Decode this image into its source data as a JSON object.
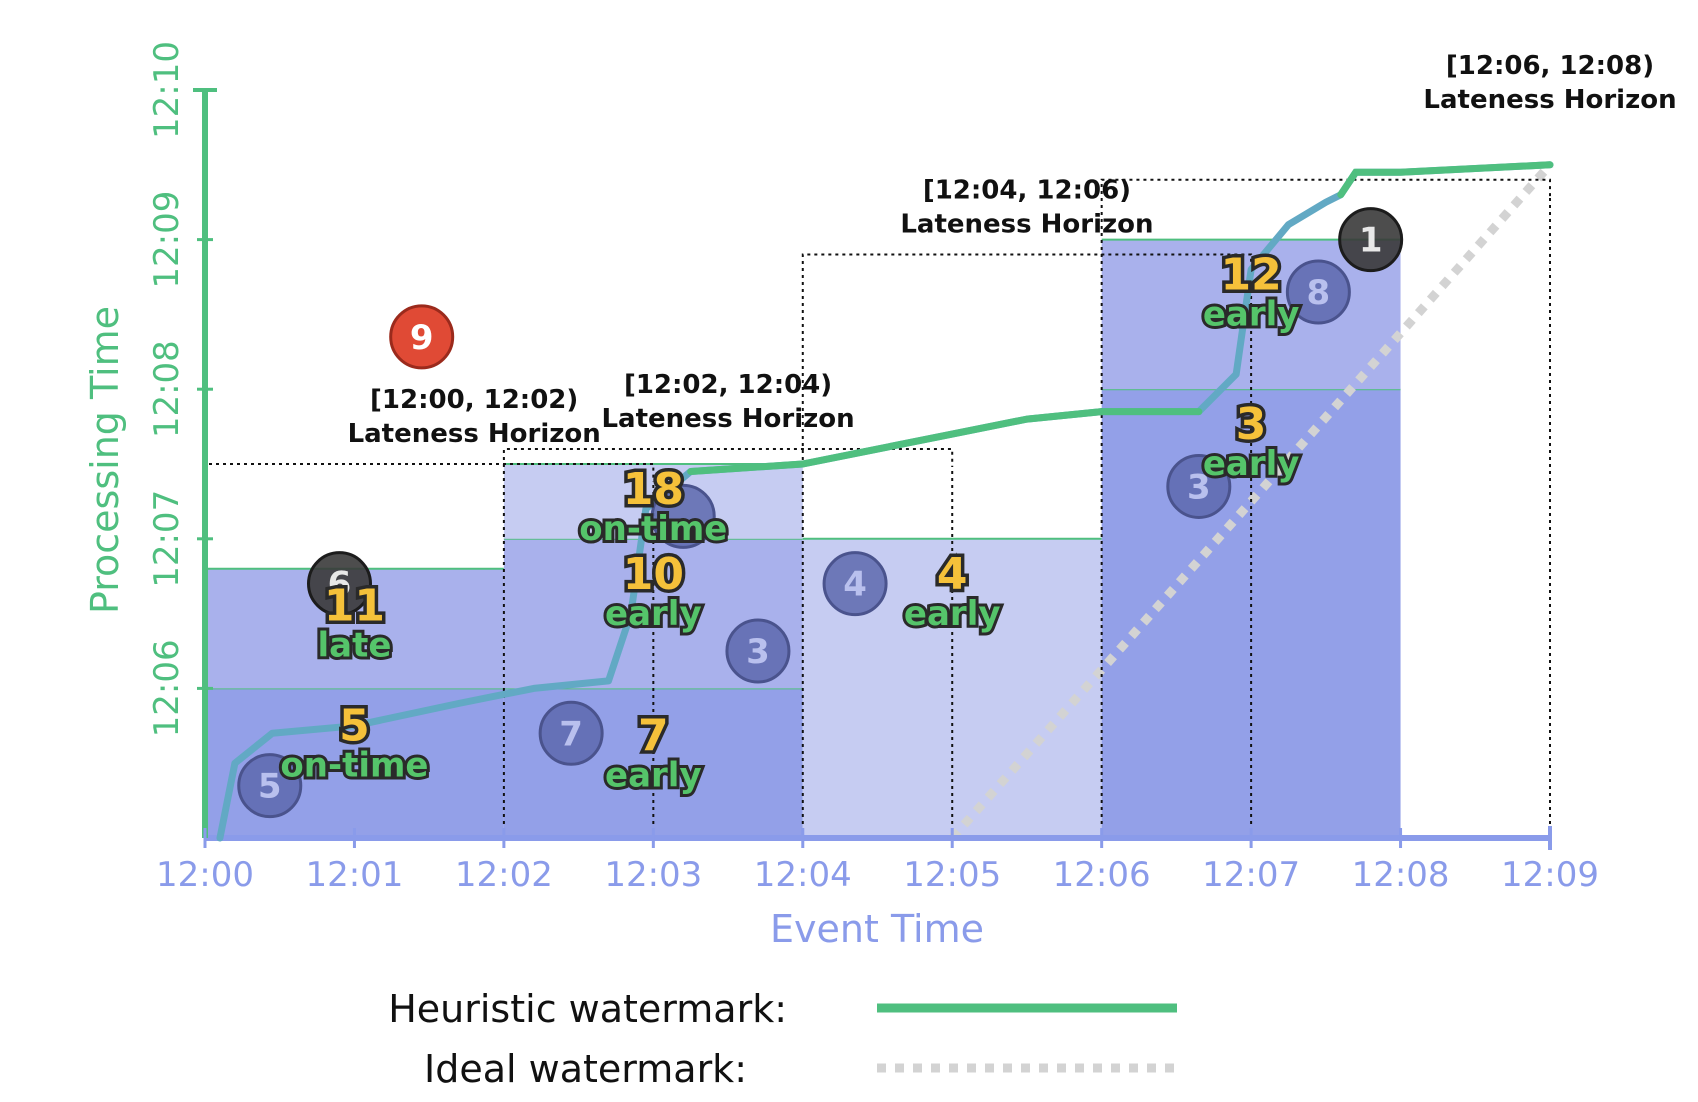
{
  "chart_data": {
    "type": "scatter",
    "xlabel": "Event Time",
    "ylabel": "Processing Time",
    "x_ticks": [
      "12:00",
      "12:01",
      "12:02",
      "12:03",
      "12:04",
      "12:05",
      "12:06",
      "12:07",
      "12:08",
      "12:09"
    ],
    "y_ticks": [
      "12:06",
      "12:07",
      "12:08",
      "12:09",
      "12:10"
    ],
    "xlim": [
      "12:00",
      "12:09"
    ],
    "ylim": [
      "12:05",
      "12:10"
    ],
    "colors": {
      "heuristic": "#4fbf7f",
      "ideal": "#d3d3d3",
      "event_axis": "#8a9bea",
      "pane_light": "#c6ccf2",
      "pane_mid": "#a9b1ec",
      "pane_dark": "#93a0e8",
      "dot": "#5d68ae",
      "late_dot": "#3a3a3a",
      "dropped_dot": "#e04a35"
    },
    "windows": [
      {
        "start": "12:00",
        "end": "12:02",
        "panes": [
          {
            "count": "5",
            "timing": "on-time",
            "fire_at": "12:06:00"
          },
          {
            "count": "11",
            "timing": "late",
            "fire_at": "12:06:48"
          }
        ]
      },
      {
        "start": "12:02",
        "end": "12:04",
        "panes": [
          {
            "count": "7",
            "timing": "early",
            "fire_at": "12:06:00"
          },
          {
            "count": "10",
            "timing": "early",
            "fire_at": "12:07:00"
          },
          {
            "count": "18",
            "timing": "on-time",
            "fire_at": "12:07:30"
          }
        ]
      },
      {
        "start": "12:04",
        "end": "12:06",
        "panes": [
          {
            "count": "4",
            "timing": "early",
            "fire_at": "12:07:00"
          }
        ]
      },
      {
        "start": "12:06",
        "end": "12:08",
        "panes": [
          {
            "count": "3",
            "timing": "early",
            "fire_at": "12:08:00"
          },
          {
            "count": "12",
            "timing": "early",
            "fire_at": "12:09:00"
          }
        ]
      }
    ],
    "horizons": [
      {
        "label_range": "[12:00, 12:02)",
        "label_text": "Lateness Horizon",
        "start": "12:00",
        "end": "12:03",
        "at": "12:07:30"
      },
      {
        "label_range": "[12:02, 12:04)",
        "label_text": "Lateness Horizon",
        "start": "12:02",
        "end": "12:05",
        "at": "12:07:36"
      },
      {
        "label_range": "[12:04, 12:06)",
        "label_text": "Lateness Horizon",
        "start": "12:04",
        "end": "12:07",
        "at": "12:08:54"
      },
      {
        "label_range": "[12:06, 12:08)",
        "label_text": "Lateness Horizon",
        "start": "12:06",
        "end": "12:09",
        "at": "12:09:24"
      }
    ],
    "points": [
      {
        "label": "5",
        "event": "12:00:26",
        "processing": "12:05:21",
        "kind": "on-time"
      },
      {
        "label": "6",
        "event": "12:00:54",
        "processing": "12:06:42",
        "kind": "late"
      },
      {
        "label": "9",
        "event": "12:01:27",
        "processing": "12:08:21",
        "kind": "dropped"
      },
      {
        "label": "7",
        "event": "12:02:27",
        "processing": "12:05:42",
        "kind": "on-time"
      },
      {
        "label": "3",
        "event": "12:03:42",
        "processing": "12:06:15",
        "kind": "on-time"
      },
      {
        "label": "",
        "event": "12:03:12",
        "processing": "12:07:09",
        "kind": "on-time"
      },
      {
        "label": "4",
        "event": "12:04:21",
        "processing": "12:06:42",
        "kind": "on-time"
      },
      {
        "label": "3",
        "event": "12:06:39",
        "processing": "12:07:21",
        "kind": "on-time"
      },
      {
        "label": "8",
        "event": "12:07:27",
        "processing": "12:08:39",
        "kind": "on-time"
      },
      {
        "label": "1",
        "event": "12:07:48",
        "processing": "12:09:00",
        "kind": "late"
      }
    ],
    "heuristic_watermark": [
      [
        "12:00:06",
        "12:05:00"
      ],
      [
        "12:00:12",
        "12:05:30"
      ],
      [
        "12:00:27",
        "12:05:42"
      ],
      [
        "12:01:00",
        "12:05:45"
      ],
      [
        "12:01:42",
        "12:05:54"
      ],
      [
        "12:02:12",
        "12:06:00"
      ],
      [
        "12:02:42",
        "12:06:03"
      ],
      [
        "12:02:51",
        "12:06:30"
      ],
      [
        "12:02:57",
        "12:07:12"
      ],
      [
        "12:03:15",
        "12:07:27"
      ],
      [
        "12:04:00",
        "12:07:30"
      ],
      [
        "12:04:30",
        "12:07:36"
      ],
      [
        "12:05:00",
        "12:07:42"
      ],
      [
        "12:05:30",
        "12:07:48"
      ],
      [
        "12:06:00",
        "12:07:51"
      ],
      [
        "12:06:39",
        "12:07:51"
      ],
      [
        "12:06:54",
        "12:08:06"
      ],
      [
        "12:06:57",
        "12:08:27"
      ],
      [
        "12:07:00",
        "12:08:48"
      ],
      [
        "12:07:15",
        "12:09:06"
      ],
      [
        "12:07:30",
        "12:09:15"
      ],
      [
        "12:07:36",
        "12:09:18"
      ],
      [
        "12:07:42",
        "12:09:27"
      ],
      [
        "12:08:00",
        "12:09:27"
      ],
      [
        "12:09:00",
        "12:09:30"
      ]
    ],
    "ideal_watermark": [
      [
        "12:05:00",
        "12:05:00"
      ],
      [
        "12:09:00",
        "12:09:30"
      ]
    ],
    "legend": [
      {
        "label": "Heuristic watermark:",
        "style": "solid",
        "color": "#4fbf7f"
      },
      {
        "label": "Ideal watermark:",
        "style": "dotted",
        "color": "#d3d3d3"
      }
    ]
  }
}
